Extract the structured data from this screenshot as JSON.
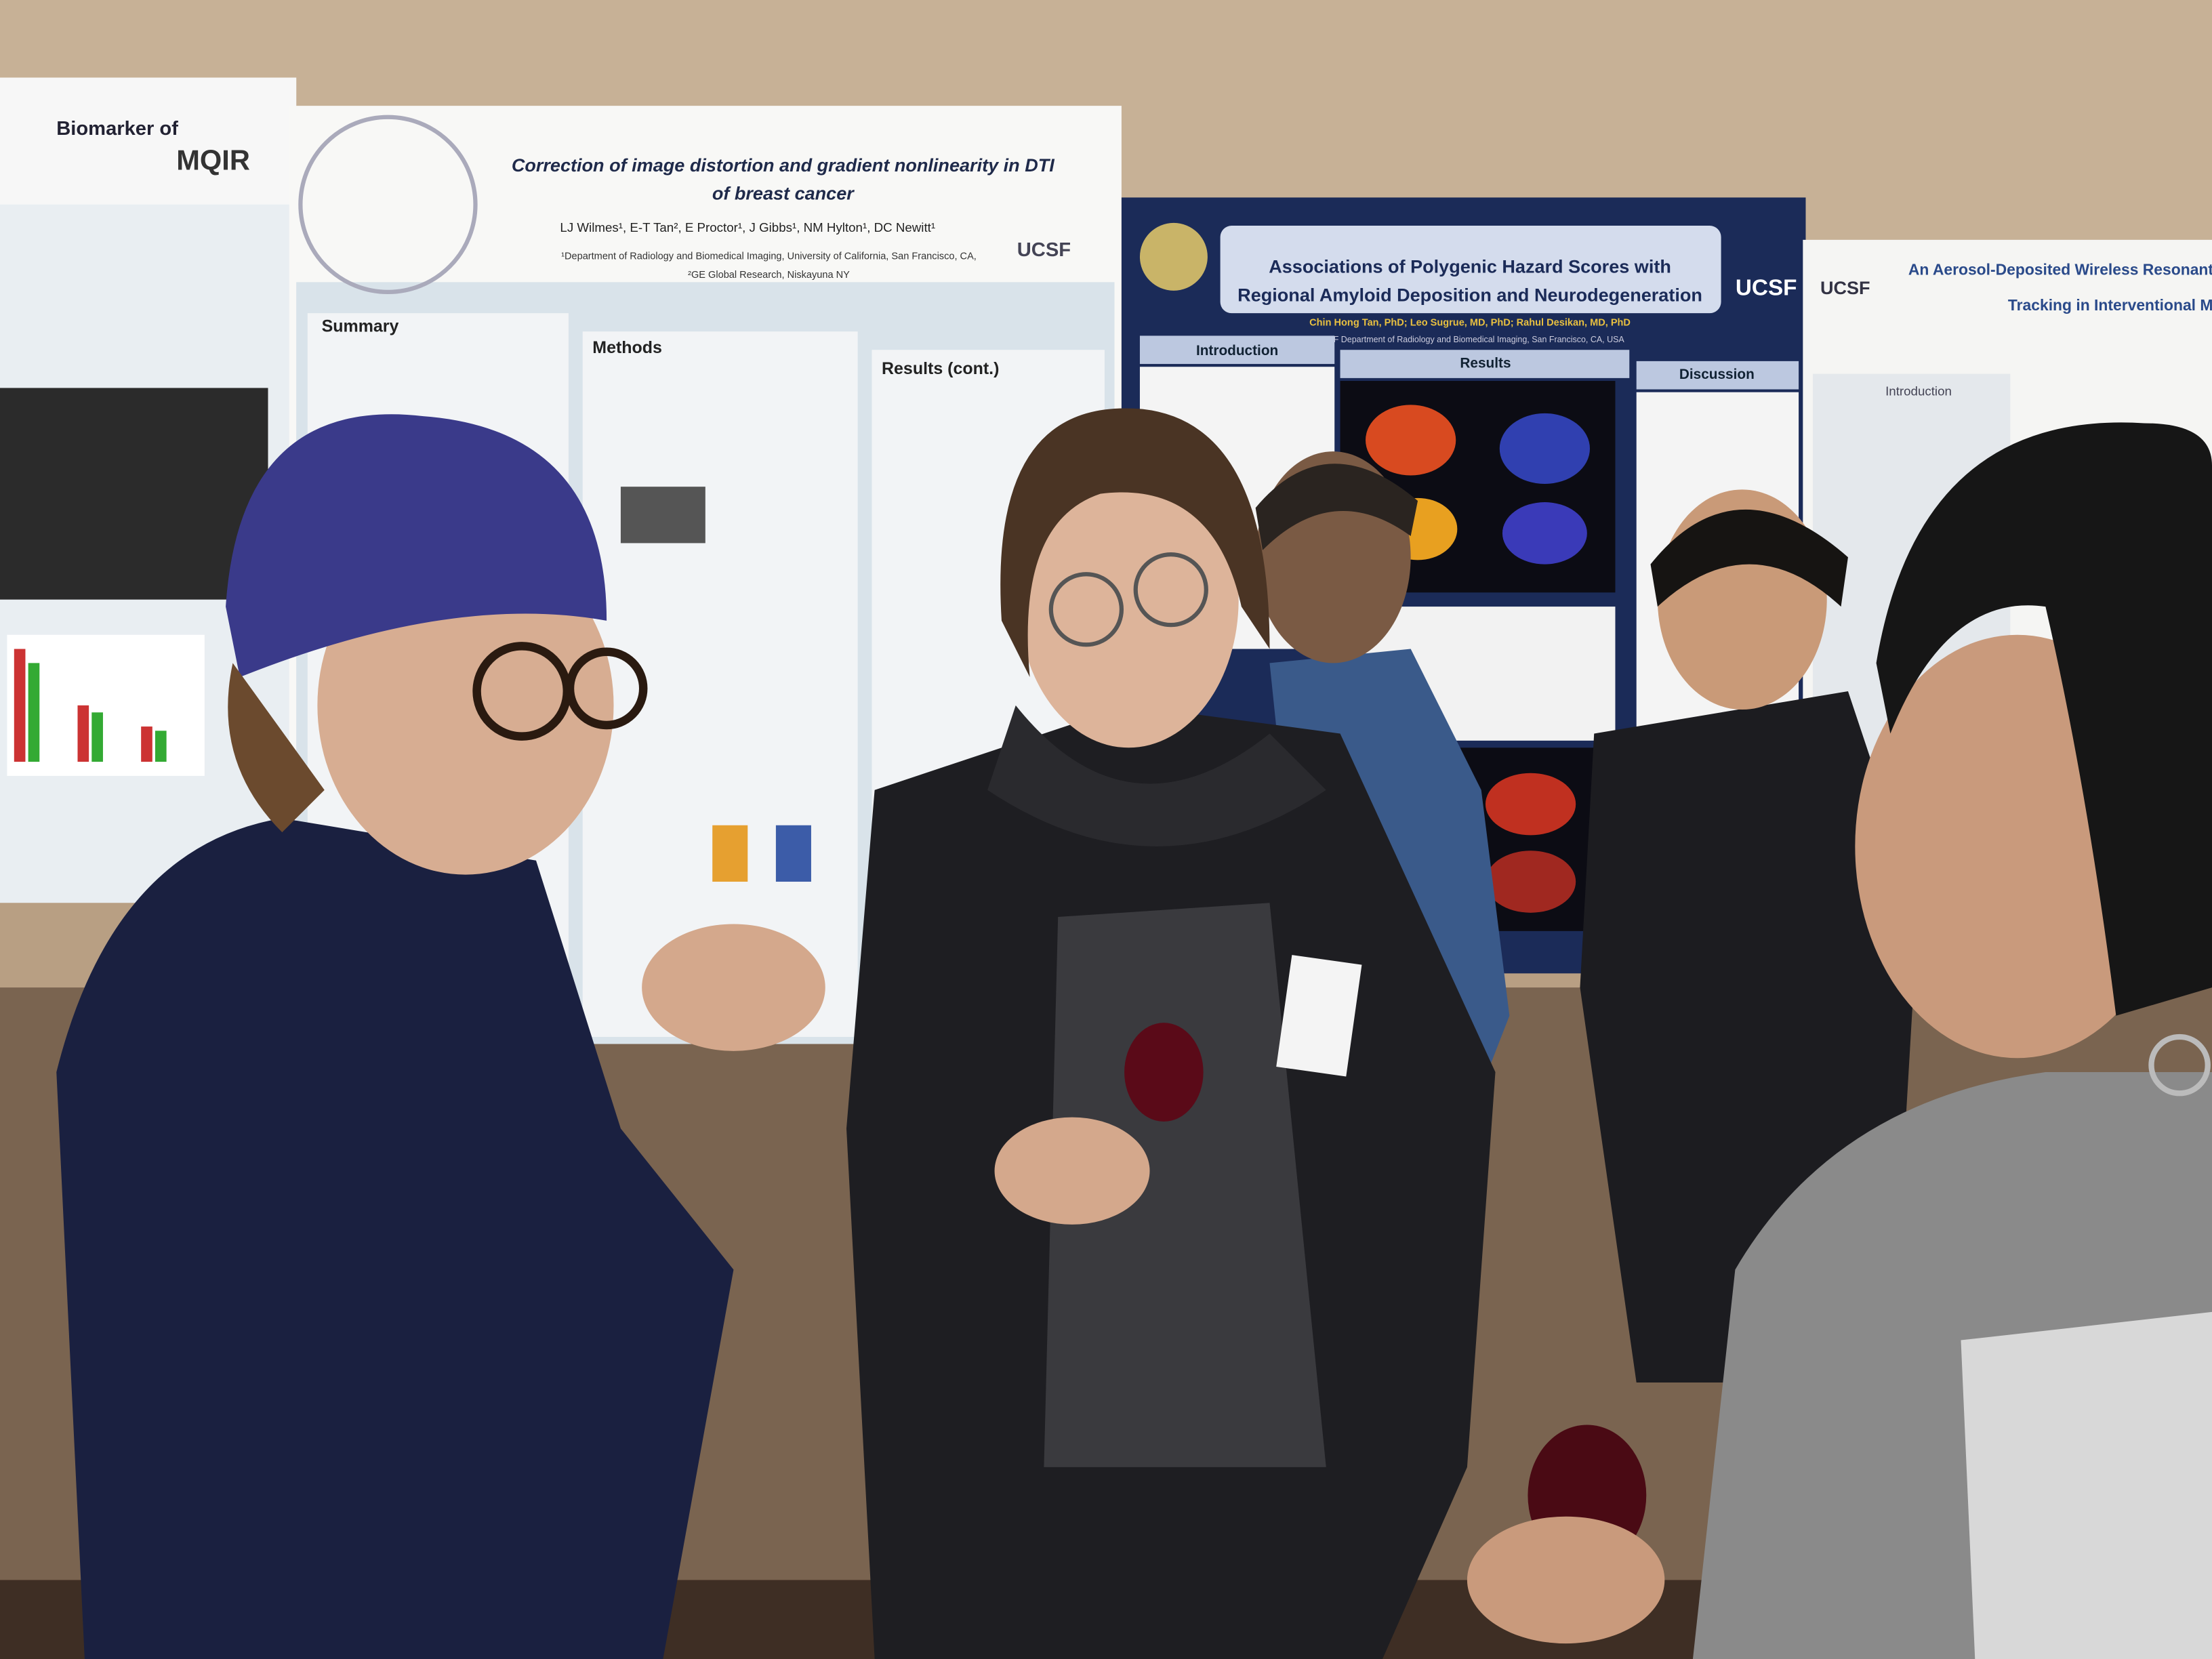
{
  "posters": [
    {
      "title_lines": [
        "Biomarker of"
      ],
      "logo": "MQIR"
    },
    {
      "title_lines": [
        "Correction of image distortion and gradient nonlinearity in DTI",
        "of breast cancer"
      ],
      "authors": "LJ Wilmes¹, E-T Tan², E Proctor¹, J Gibbs¹, NM Hylton¹, DC Newitt¹",
      "affiliation_lines": [
        "¹Department of Radiology and Biomedical Imaging, University of California, San Francisco, CA,",
        "²GE Global Research, Niskayuna NY"
      ],
      "logo": "UCSF",
      "sections": [
        "Summary",
        "Methods",
        "Results (cont.)"
      ]
    },
    {
      "title_lines": [
        "Associations of Polygenic Hazard Scores with",
        "Regional Amyloid Deposition and Neurodegeneration"
      ],
      "authors": "Chin Hong Tan, PhD; Leo Sugrue, MD, PhD; Rahul Desikan, MD, PhD",
      "affiliation_lines": [
        "UCSF Department of Radiology and Biomedical Imaging, San Francisco, CA, USA"
      ],
      "logo": "UCSF",
      "sections": [
        "Introduction",
        "Results",
        "Discussion"
      ]
    },
    {
      "title_lines": [
        "An Aerosol-Deposited Wireless Resonant Ma",
        "Tracking in Interventional MR"
      ],
      "logo": "UCSF",
      "sections": [
        "Introduction"
      ]
    }
  ]
}
